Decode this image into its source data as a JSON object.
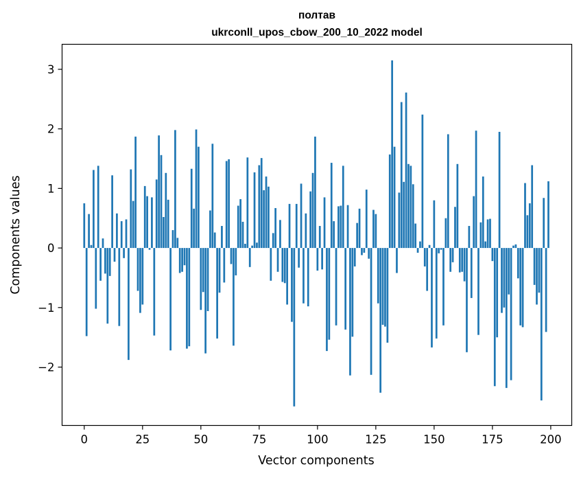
{
  "chart_data": {
    "type": "bar",
    "title": "полтав",
    "subtitle": "ukrconll_upos_cbow_200_10_2022 model",
    "xlabel": "Vector components",
    "ylabel": "Components values",
    "xlim": [
      -9.5,
      209
    ],
    "ylim": [
      -2.98,
      3.42
    ],
    "xticks": [
      0,
      25,
      50,
      75,
      100,
      125,
      150,
      175,
      200
    ],
    "xtick_labels": [
      "0",
      "25",
      "50",
      "75",
      "100",
      "125",
      "150",
      "175",
      "200"
    ],
    "yticks": [
      -2,
      -1,
      0,
      1,
      2,
      3
    ],
    "ytick_labels": [
      "−2",
      "−1",
      "0",
      "1",
      "2",
      "3"
    ],
    "grid": false,
    "bar_color": "#1f77b4",
    "values": [
      0.75,
      -1.48,
      0.57,
      0.05,
      1.31,
      -1.02,
      1.38,
      -0.55,
      0.16,
      -0.43,
      -1.27,
      -0.47,
      1.22,
      -0.23,
      0.58,
      -1.31,
      0.45,
      -0.17,
      0.48,
      -1.88,
      1.32,
      0.79,
      1.87,
      -0.72,
      -1.09,
      -0.95,
      1.04,
      0.87,
      -0.03,
      0.85,
      -1.47,
      1.15,
      1.89,
      1.56,
      0.52,
      1.26,
      0.81,
      -1.72,
      0.3,
      1.98,
      0.17,
      -0.42,
      -0.4,
      -0.29,
      -1.69,
      -1.65,
      1.33,
      0.66,
      1.99,
      1.7,
      -1.04,
      -0.74,
      -1.77,
      -1.06,
      0.63,
      1.75,
      0.26,
      -1.52,
      -0.75,
      0.37,
      -0.58,
      1.46,
      1.49,
      -0.27,
      -1.64,
      -0.46,
      0.71,
      0.82,
      0.44,
      0.07,
      1.52,
      -0.32,
      0.04,
      1.27,
      0.09,
      1.39,
      1.51,
      0.97,
      1.2,
      1.03,
      -0.55,
      0.25,
      0.67,
      -0.4,
      0.47,
      -0.57,
      -0.59,
      -0.95,
      0.74,
      -1.24,
      -2.66,
      0.74,
      -0.33,
      1.08,
      -0.93,
      0.58,
      -0.98,
      0.95,
      1.26,
      1.87,
      -0.38,
      0.37,
      -0.36,
      0.85,
      -1.73,
      -1.54,
      1.43,
      0.45,
      -1.3,
      0.7,
      0.71,
      1.38,
      -1.37,
      0.72,
      -2.14,
      -1.49,
      -0.31,
      0.42,
      0.66,
      -0.12,
      -0.08,
      0.98,
      -0.18,
      -2.13,
      0.64,
      0.57,
      -0.93,
      -2.43,
      -1.29,
      -1.32,
      -1.59,
      1.57,
      3.15,
      1.7,
      -0.42,
      0.93,
      2.45,
      1.11,
      2.61,
      1.41,
      1.38,
      1.07,
      0.41,
      -0.08,
      0.11,
      2.24,
      -0.31,
      -0.72,
      0.05,
      -1.67,
      0.8,
      -1.52,
      -0.09,
      -0.03,
      -1.3,
      0.5,
      1.91,
      -0.4,
      -0.24,
      0.69,
      1.41,
      -0.41,
      -0.4,
      -0.56,
      -1.75,
      0.37,
      -0.84,
      0.87,
      1.97,
      -1.46,
      0.43,
      1.2,
      0.11,
      0.48,
      0.49,
      -0.22,
      -2.32,
      -1.5,
      1.95,
      -1.09,
      -1.0,
      -2.35,
      -0.78,
      -2.22,
      0.04,
      0.06,
      -0.51,
      -1.3,
      -1.33,
      1.09,
      0.55,
      0.75,
      1.39,
      -0.62,
      -0.95,
      -0.75,
      -2.56,
      0.84,
      -1.41,
      1.12
    ]
  }
}
